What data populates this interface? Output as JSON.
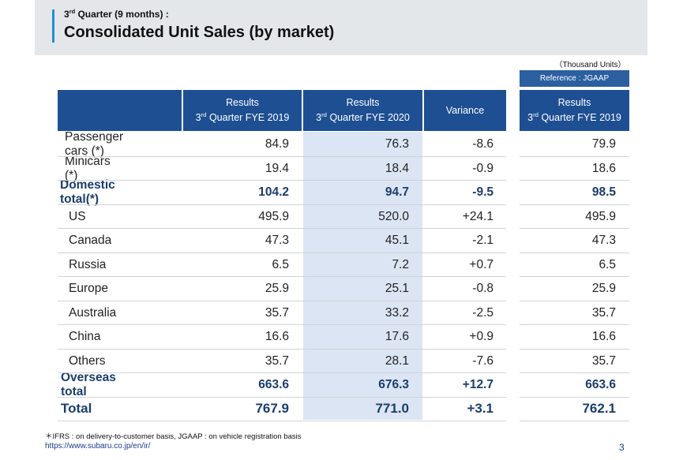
{
  "header": {
    "subtitle_main": "3",
    "subtitle_sup": "rd",
    "subtitle_rest": " Quarter (9 months) :",
    "title": "Consolidated Unit Sales (by market)"
  },
  "units_note": "（Thousand Units）",
  "reference_label": "Reference : JGAAP",
  "columns": {
    "c1": {
      "line1": "Results",
      "pre": "3",
      "sup": "rd",
      "post": " Quarter FYE 2019"
    },
    "c2": {
      "line1": "Results",
      "pre": "3",
      "sup": "rd",
      "post": " Quarter FYE 2020"
    },
    "c3": {
      "line1": "Variance"
    },
    "c4": {
      "line1": "Results",
      "pre": "3",
      "sup": "rd",
      "post": " Quarter FYE 2019"
    }
  },
  "rows": [
    {
      "label": "Passenger cars (*)",
      "c1": "84.9",
      "c2": "76.3",
      "c3": "-8.6",
      "c4": "79.9"
    },
    {
      "label": "Minicars (*)",
      "c1": "19.4",
      "c2": "18.4",
      "c3": "-0.9",
      "c4": "18.6"
    },
    {
      "label": "Domestic total(*)",
      "c1": "104.2",
      "c2": "94.7",
      "c3": "-9.5",
      "c4": "98.5"
    },
    {
      "label": "US",
      "c1": "495.9",
      "c2": "520.0",
      "c3": "+24.1",
      "c4": "495.9"
    },
    {
      "label": "Canada",
      "c1": "47.3",
      "c2": "45.1",
      "c3": "-2.1",
      "c4": "47.3"
    },
    {
      "label": "Russia",
      "c1": "6.5",
      "c2": "7.2",
      "c3": "+0.7",
      "c4": "6.5"
    },
    {
      "label": "Europe",
      "c1": "25.9",
      "c2": "25.1",
      "c3": "-0.8",
      "c4": "25.9"
    },
    {
      "label": "Australia",
      "c1": "35.7",
      "c2": "33.2",
      "c3": "-2.5",
      "c4": "35.7"
    },
    {
      "label": "China",
      "c1": "16.6",
      "c2": "17.6",
      "c3": "+0.9",
      "c4": "16.6"
    },
    {
      "label": "Others",
      "c1": "35.7",
      "c2": "28.1",
      "c3": "-7.6",
      "c4": "35.7"
    },
    {
      "label": "Overseas total",
      "c1": "663.6",
      "c2": "676.3",
      "c3": "+12.7",
      "c4": "663.6"
    },
    {
      "label": "Total",
      "c1": "767.9",
      "c2": "771.0",
      "c3": "+3.1",
      "c4": "762.1"
    }
  ],
  "footnote": "＊IFRS : on delivery-to-customer basis,   JGAAP : on vehicle registration basis",
  "url": "https://www.subaru.co.jp/en/ir/",
  "page_number": "3"
}
